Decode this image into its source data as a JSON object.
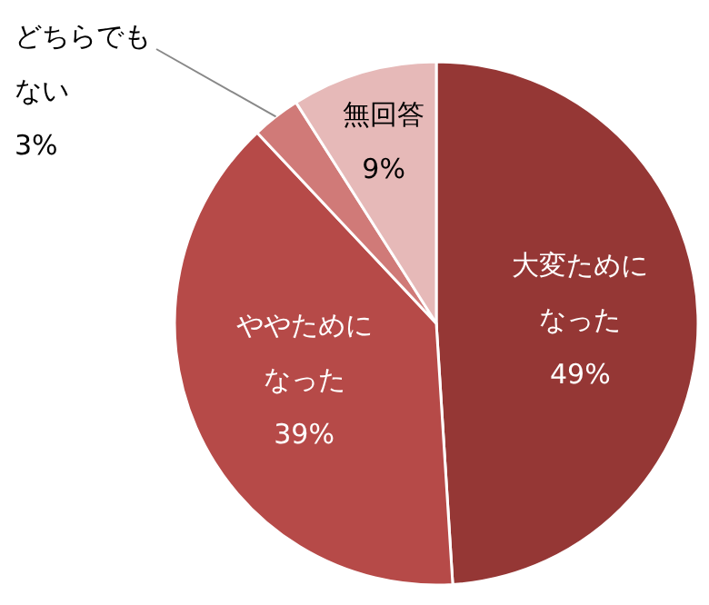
{
  "chart_data": {
    "type": "pie",
    "categories": [
      "大変ためになった",
      "ややためになった",
      "どちらでもない",
      "無回答"
    ],
    "values": [
      49,
      39,
      3,
      9
    ],
    "colors": [
      "#953735",
      "#b64a48",
      "#d07a78",
      "#e6b9b8"
    ],
    "value_labels": [
      "49%",
      "39%",
      "3%",
      "9%"
    ]
  }
}
